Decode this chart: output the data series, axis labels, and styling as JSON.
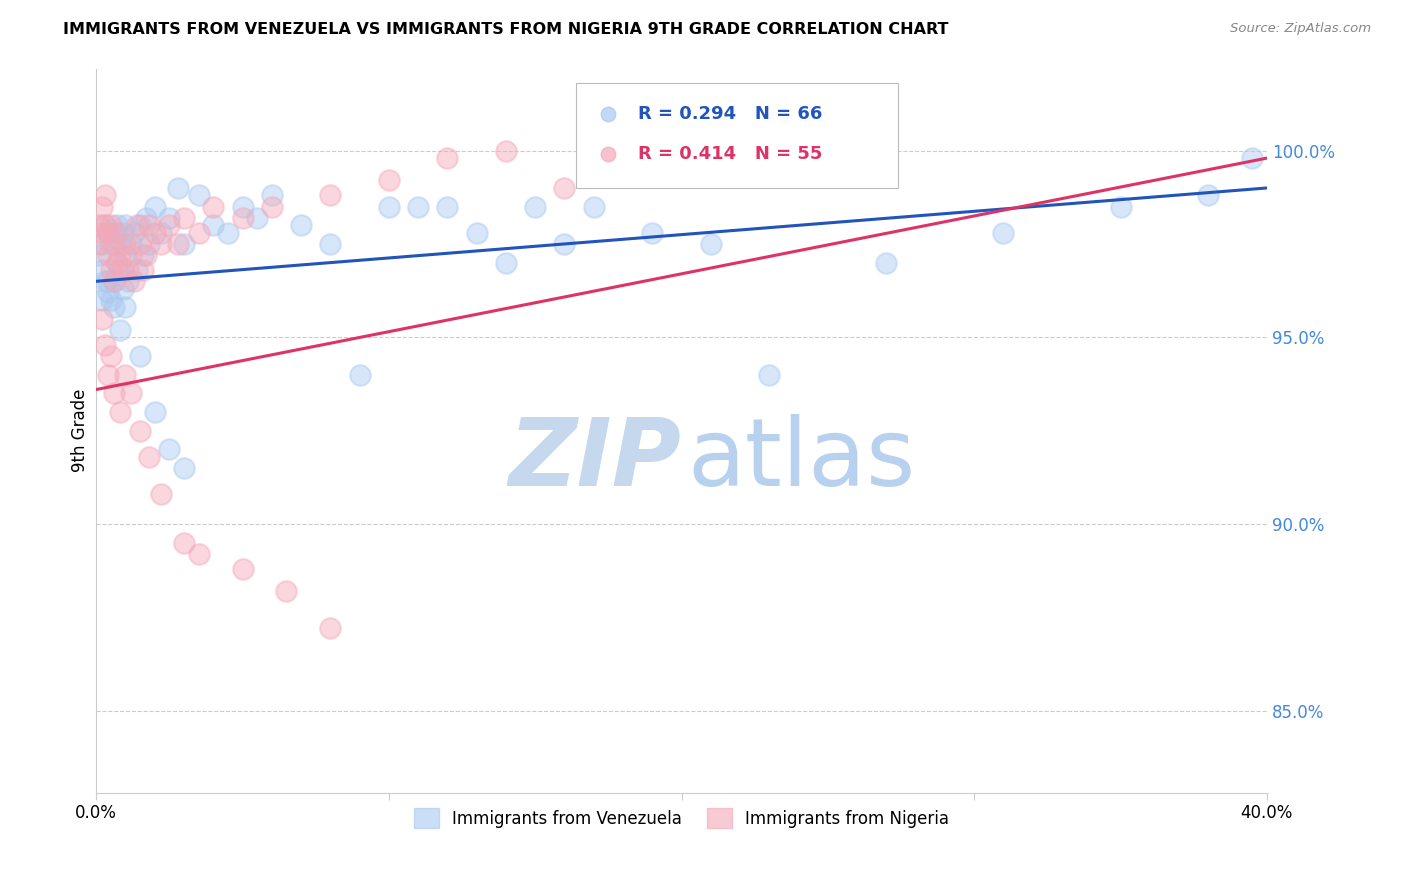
{
  "title": "IMMIGRANTS FROM VENEZUELA VS IMMIGRANTS FROM NIGERIA 9TH GRADE CORRELATION CHART",
  "source": "Source: ZipAtlas.com",
  "ylabel": "9th Grade",
  "xlim": [
    0.0,
    0.4
  ],
  "ylim": [
    0.828,
    1.022
  ],
  "xtick_positions": [
    0.0,
    0.1,
    0.2,
    0.3,
    0.4
  ],
  "xtick_labels": [
    "0.0%",
    "",
    "",
    "",
    "40.0%"
  ],
  "ytick_positions": [
    0.85,
    0.9,
    0.95,
    1.0
  ],
  "ytick_labels": [
    "85.0%",
    "90.0%",
    "95.0%",
    "100.0%"
  ],
  "legend_r_blue": "R = 0.294",
  "legend_n_blue": "N = 66",
  "legend_r_pink": "R = 0.414",
  "legend_n_pink": "N = 55",
  "legend_label_blue": "Immigrants from Venezuela",
  "legend_label_pink": "Immigrants from Nigeria",
  "blue_color": "#A8C8F0",
  "pink_color": "#F4A8B8",
  "trend_blue_color": "#2255BB",
  "trend_pink_color": "#DD3366",
  "watermark_zip_color": "#C5D8EE",
  "watermark_atlas_color": "#B0CCEE",
  "blue_x": [
    0.001,
    0.002,
    0.002,
    0.003,
    0.003,
    0.004,
    0.004,
    0.005,
    0.005,
    0.006,
    0.006,
    0.007,
    0.007,
    0.008,
    0.008,
    0.009,
    0.009,
    0.01,
    0.01,
    0.011,
    0.012,
    0.013,
    0.014,
    0.015,
    0.016,
    0.017,
    0.018,
    0.02,
    0.022,
    0.025,
    0.028,
    0.03,
    0.035,
    0.04,
    0.045,
    0.05,
    0.055,
    0.06,
    0.07,
    0.08,
    0.09,
    0.1,
    0.11,
    0.12,
    0.13,
    0.14,
    0.15,
    0.16,
    0.17,
    0.19,
    0.21,
    0.23,
    0.27,
    0.31,
    0.35,
    0.38,
    0.395,
    0.002,
    0.004,
    0.006,
    0.008,
    0.01,
    0.015,
    0.02,
    0.025,
    0.03
  ],
  "blue_y": [
    0.972,
    0.975,
    0.968,
    0.98,
    0.965,
    0.978,
    0.962,
    0.975,
    0.96,
    0.978,
    0.965,
    0.98,
    0.97,
    0.968,
    0.975,
    0.963,
    0.978,
    0.972,
    0.98,
    0.965,
    0.975,
    0.978,
    0.968,
    0.98,
    0.972,
    0.982,
    0.975,
    0.985,
    0.978,
    0.982,
    0.99,
    0.975,
    0.988,
    0.98,
    0.978,
    0.985,
    0.982,
    0.988,
    0.98,
    0.975,
    0.94,
    0.985,
    0.985,
    0.985,
    0.978,
    0.97,
    0.985,
    0.975,
    0.985,
    0.978,
    0.975,
    0.94,
    0.97,
    0.978,
    0.985,
    0.988,
    0.998,
    0.96,
    0.965,
    0.958,
    0.952,
    0.958,
    0.945,
    0.93,
    0.92,
    0.915
  ],
  "pink_x": [
    0.001,
    0.001,
    0.002,
    0.002,
    0.003,
    0.003,
    0.004,
    0.004,
    0.005,
    0.005,
    0.006,
    0.006,
    0.007,
    0.007,
    0.008,
    0.009,
    0.01,
    0.011,
    0.012,
    0.013,
    0.014,
    0.015,
    0.016,
    0.017,
    0.018,
    0.02,
    0.022,
    0.025,
    0.028,
    0.03,
    0.035,
    0.04,
    0.05,
    0.06,
    0.08,
    0.1,
    0.12,
    0.14,
    0.16,
    0.002,
    0.003,
    0.004,
    0.005,
    0.006,
    0.008,
    0.01,
    0.012,
    0.015,
    0.018,
    0.022,
    0.03,
    0.035,
    0.05,
    0.065,
    0.08
  ],
  "pink_y": [
    0.98,
    0.975,
    0.985,
    0.978,
    0.988,
    0.98,
    0.978,
    0.972,
    0.98,
    0.968,
    0.975,
    0.965,
    0.978,
    0.97,
    0.972,
    0.968,
    0.975,
    0.968,
    0.972,
    0.965,
    0.98,
    0.975,
    0.968,
    0.972,
    0.98,
    0.978,
    0.975,
    0.98,
    0.975,
    0.982,
    0.978,
    0.985,
    0.982,
    0.985,
    0.988,
    0.992,
    0.998,
    1.0,
    0.99,
    0.955,
    0.948,
    0.94,
    0.945,
    0.935,
    0.93,
    0.94,
    0.935,
    0.925,
    0.918,
    0.908,
    0.895,
    0.892,
    0.888,
    0.882,
    0.872
  ],
  "blue_trend_y0": 0.965,
  "blue_trend_y1": 0.99,
  "pink_trend_y0": 0.936,
  "pink_trend_y1": 0.998
}
